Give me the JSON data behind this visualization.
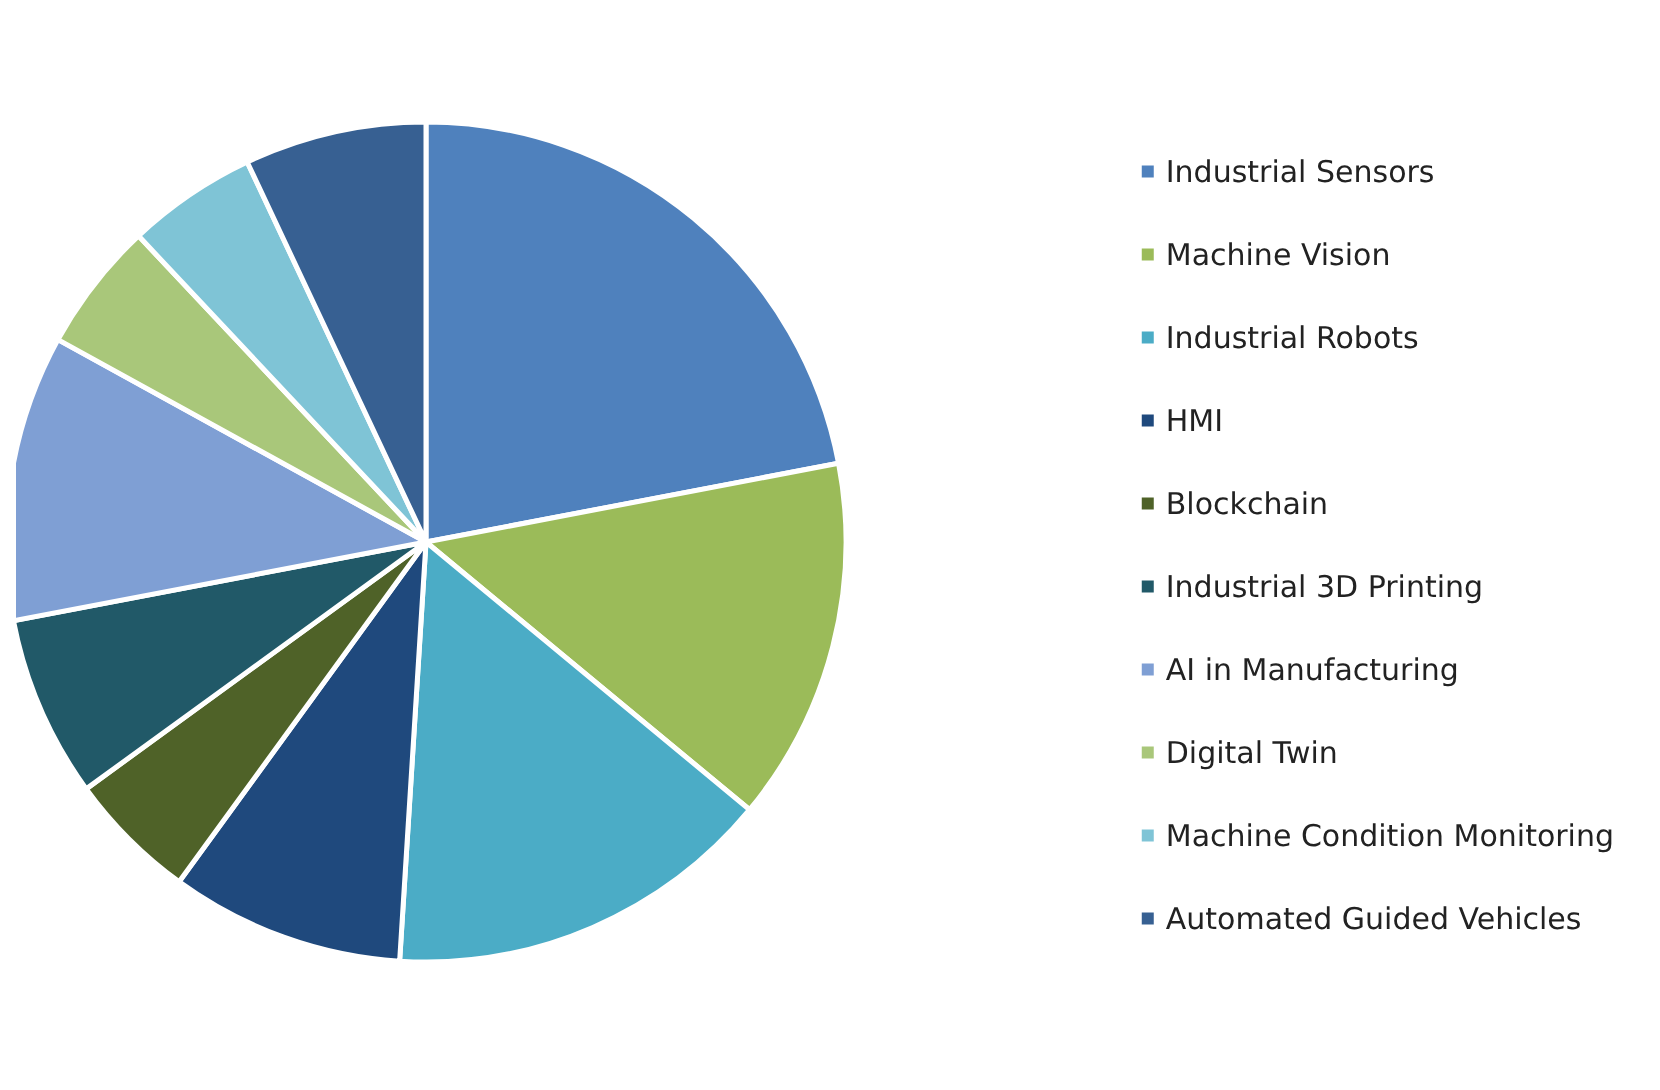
{
  "chart_data": {
    "type": "pie",
    "categories": [
      "Industrial Sensors",
      "Machine Vision",
      "Industrial Robots",
      "HMI",
      "Blockchain",
      "Industrial 3D Printing",
      "AI in Manufacturing",
      "Digital Twin",
      "Machine Condition Monitoring",
      "Automated Guided Vehicles"
    ],
    "values": [
      22,
      14,
      15,
      9,
      5,
      7,
      11,
      5,
      5,
      7
    ],
    "colors": [
      "#4f81bd",
      "#9bbb59",
      "#4bacc6",
      "#1f497d",
      "#4f6228",
      "#215968",
      "#7f9fd4",
      "#a9c77a",
      "#7fc4d6",
      "#376092"
    ],
    "legend": "right"
  }
}
